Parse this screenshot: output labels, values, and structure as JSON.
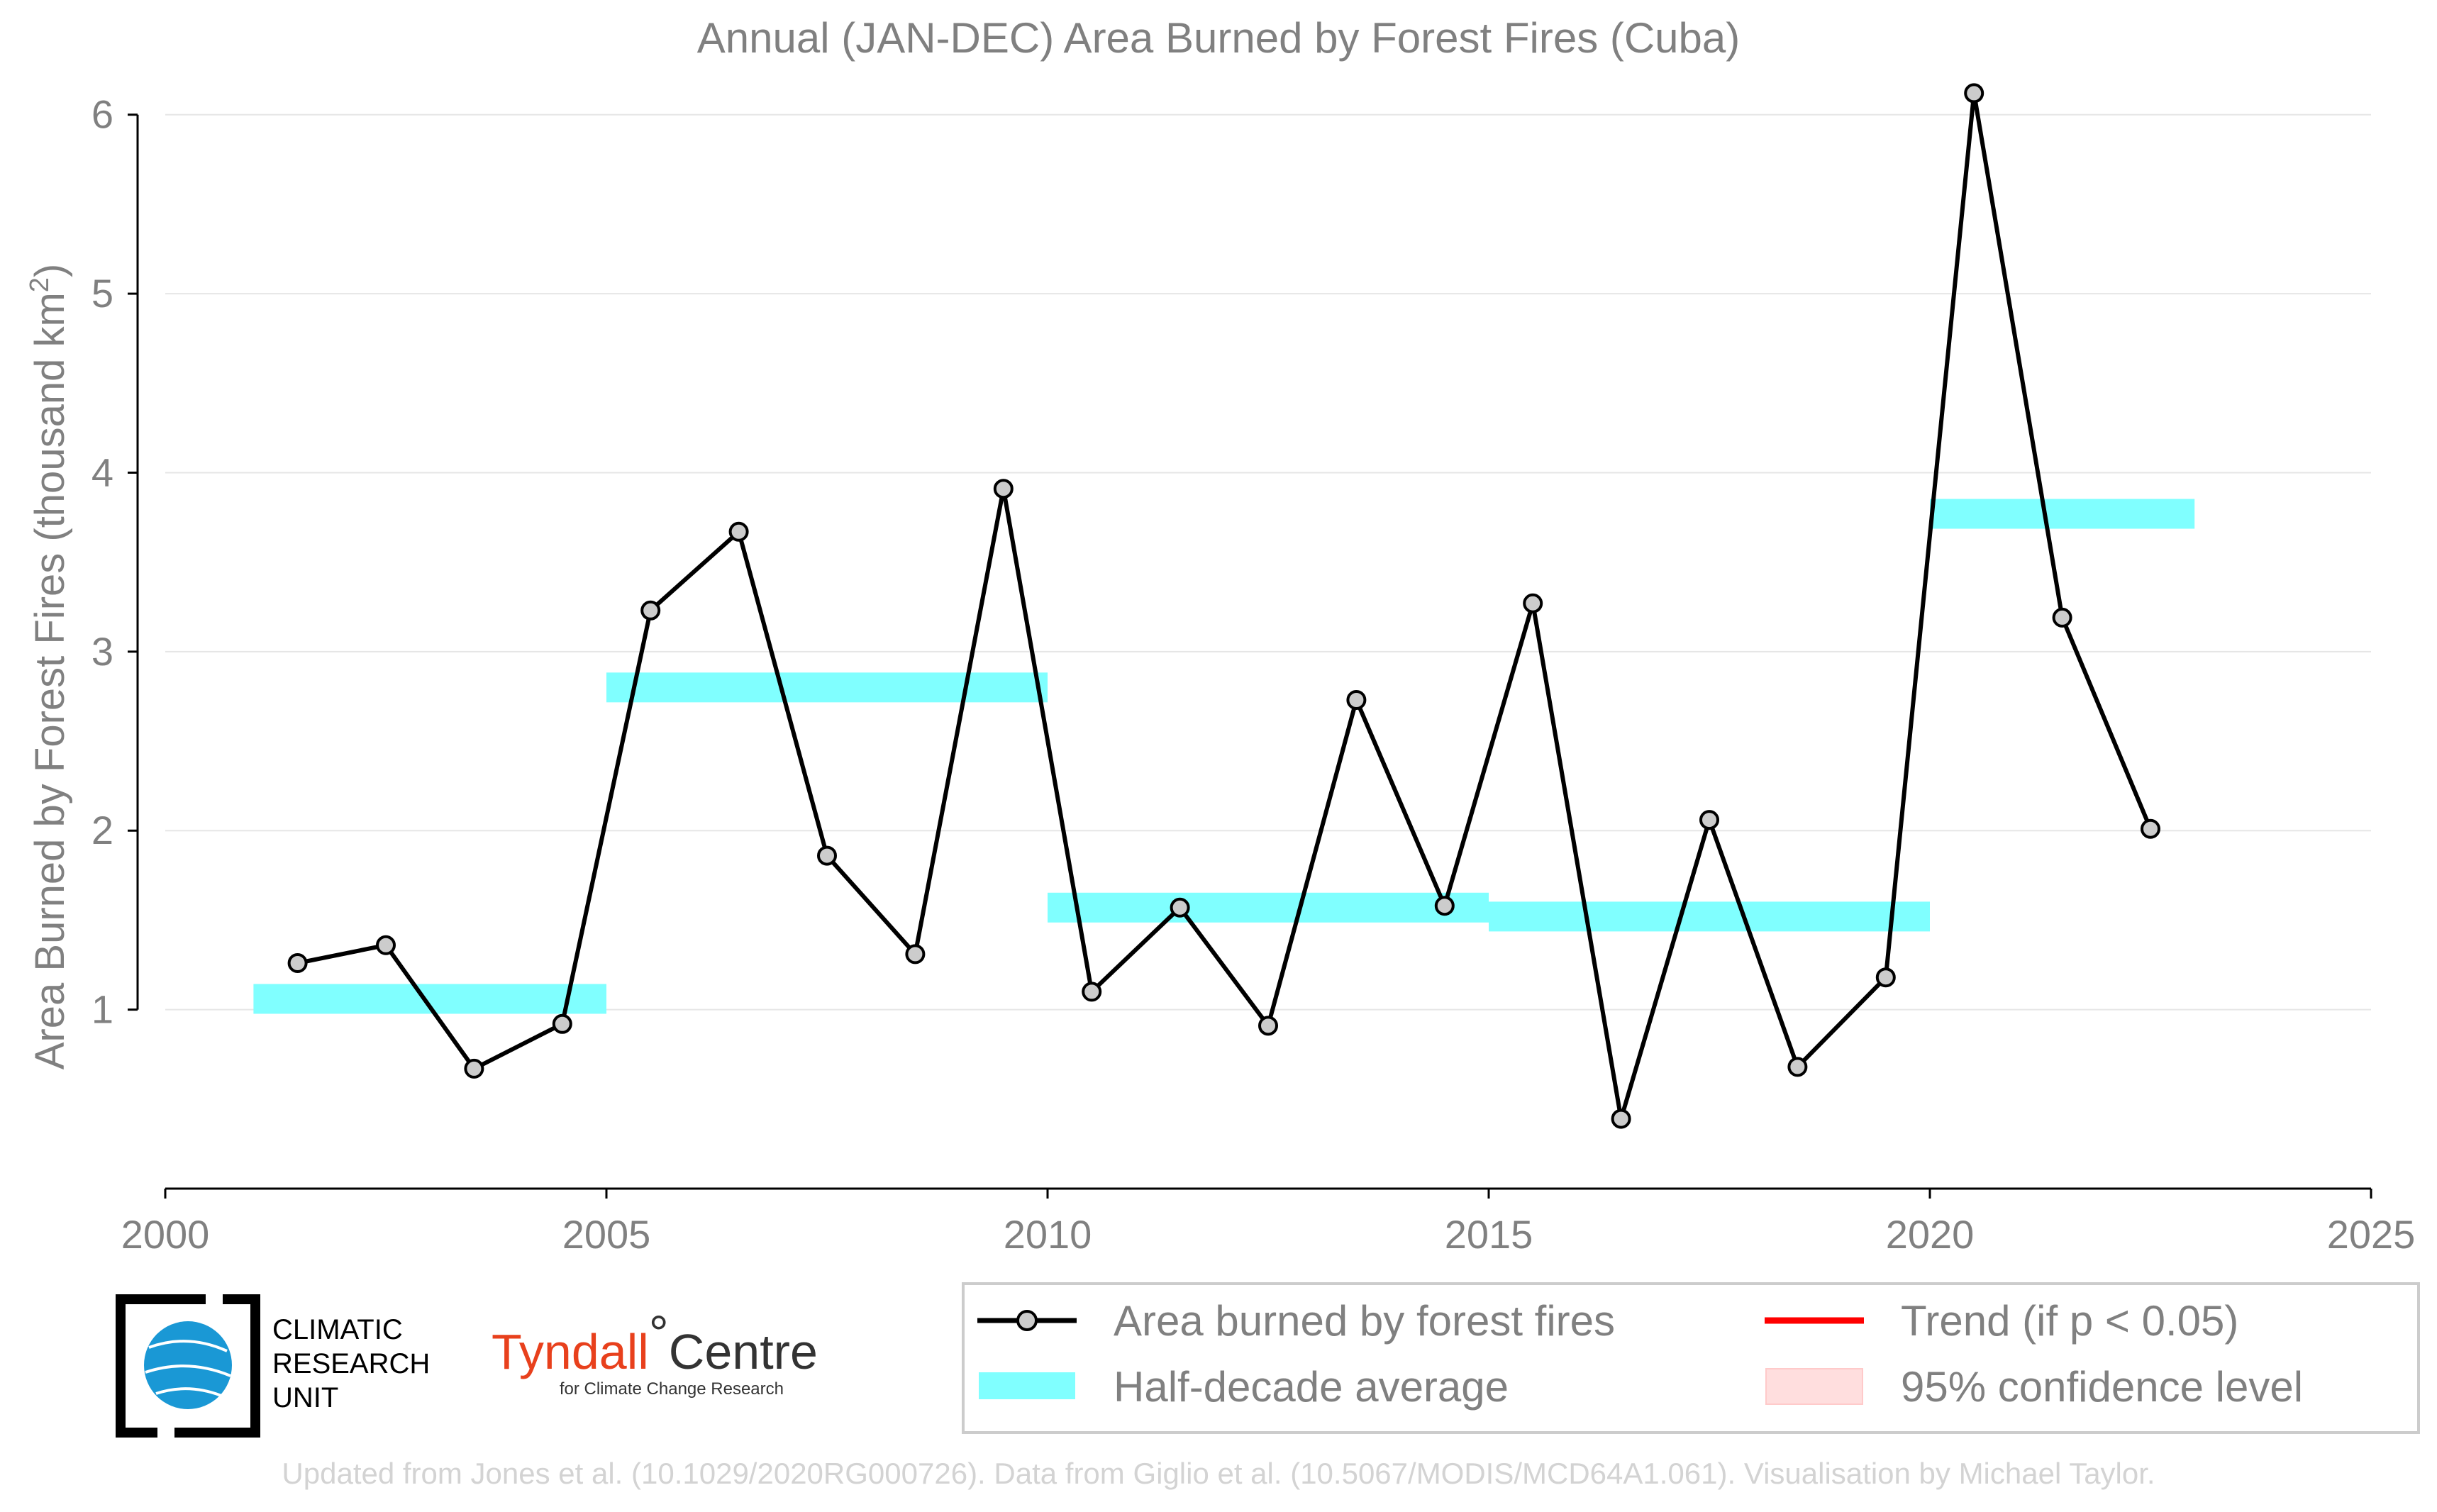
{
  "chart_data": {
    "type": "line",
    "title": "Annual (JAN-DEC) Area Burned by Forest Fires (Cuba)",
    "ylabel": "Area Burned by Forest Fires (thousand km",
    "ylabel_sup": "2",
    "ylabel_end": ")",
    "xlim": [
      2000,
      2025
    ],
    "ylim": [
      0,
      6.3
    ],
    "x_ticks": [
      2000,
      2005,
      2010,
      2015,
      2020,
      2025
    ],
    "y_ticks": [
      1,
      2,
      3,
      4,
      5,
      6
    ],
    "y_grid": true,
    "series": [
      {
        "name": "Area burned by forest fires",
        "color": "#000000",
        "marker_fill": "#cccccc",
        "x": [
          2001.5,
          2002.5,
          2003.5,
          2004.5,
          2005.5,
          2006.5,
          2007.5,
          2008.5,
          2009.5,
          2010.5,
          2011.5,
          2012.5,
          2013.5,
          2014.5,
          2015.5,
          2016.5,
          2017.5,
          2018.5,
          2019.5,
          2020.5,
          2021.5,
          2022.5
        ],
        "y": [
          1.26,
          1.36,
          0.67,
          0.92,
          3.23,
          3.67,
          1.86,
          1.31,
          3.91,
          1.1,
          1.57,
          0.91,
          2.73,
          1.58,
          3.27,
          0.39,
          2.06,
          0.68,
          1.18,
          6.12,
          3.19,
          2.01
        ]
      }
    ],
    "half_decade_average": {
      "name": "Half-decade average",
      "color": "#80ffff",
      "segments": [
        {
          "x0": 2001,
          "x1": 2005,
          "y": 1.06
        },
        {
          "x0": 2005,
          "x1": 2010,
          "y": 2.8
        },
        {
          "x0": 2010,
          "x1": 2015,
          "y": 1.57
        },
        {
          "x0": 2015,
          "x1": 2020,
          "y": 1.52
        },
        {
          "x0": 2020,
          "x1": 2023,
          "y": 3.77
        }
      ]
    },
    "legend": {
      "position": "bottom-right",
      "entries": [
        {
          "label": "Area burned by forest fires",
          "style": "line-marker",
          "color": "#000000"
        },
        {
          "label": "Trend (if p < 0.05)",
          "style": "line",
          "color": "#ff0000"
        },
        {
          "label": "Half-decade average",
          "style": "band",
          "color": "#80ffff"
        },
        {
          "label": "95% confidence level",
          "style": "box",
          "color": "#ffdede"
        }
      ]
    }
  },
  "logos": {
    "cru": [
      "CLIMATIC",
      "RESEARCH",
      "UNIT"
    ],
    "tyndall_main_1": "Tyndall",
    "tyndall_degree": "°",
    "tyndall_main_2": "Centre",
    "tyndall_sub": "for Climate Change Research"
  },
  "credit": "Updated from Jones et al. (10.1029/2020RG000726). Data from Giglio et al. (10.5067/MODIS/MCD64A1.061). Visualisation by Michael Taylor."
}
